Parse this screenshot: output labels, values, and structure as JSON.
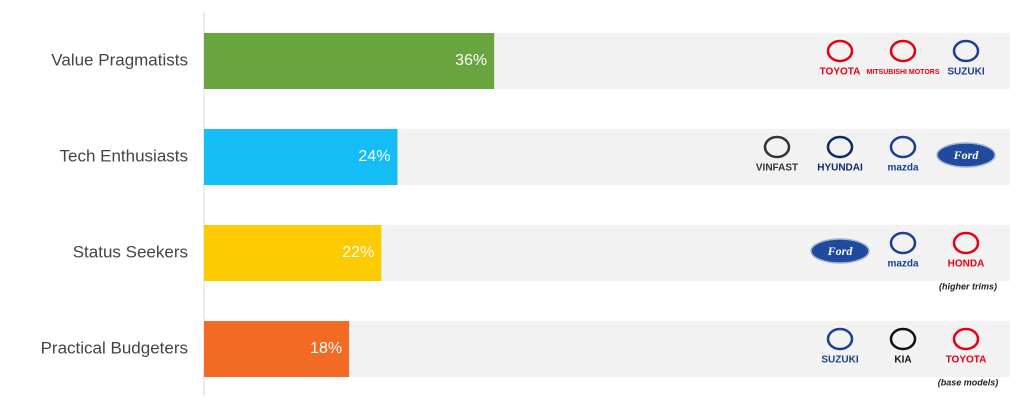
{
  "chart_data": {
    "type": "bar",
    "orientation": "horizontal",
    "categories": [
      "Value Pragmatists",
      "Tech Enthusiasts",
      "Status Seekers",
      "Practical Budgeters"
    ],
    "values": [
      36,
      24,
      22,
      18
    ],
    "value_labels": [
      "36%",
      "24%",
      "22%",
      "18%"
    ],
    "colors": [
      "#6aa43f",
      "#14bdf5",
      "#fdcb02",
      "#f26a24"
    ],
    "xlim": [
      0,
      100
    ],
    "brands": [
      {
        "names": [
          {
            "name": "TOYOTA",
            "color": "#e60012"
          },
          {
            "name": "MITSUBISHI MOTORS",
            "color": "#e60012"
          },
          {
            "name": "SUZUKI",
            "color": "#1b3f94"
          }
        ]
      },
      {
        "names": [
          {
            "name": "VINFAST",
            "color": "#333333"
          },
          {
            "name": "HYUNDAI",
            "color": "#0b2a6b"
          },
          {
            "name": "mazda",
            "color": "#1b3f94"
          },
          {
            "name": "Ford",
            "color": "#1f4a9e"
          }
        ]
      },
      {
        "names": [
          {
            "name": "Ford",
            "color": "#1f4a9e"
          },
          {
            "name": "mazda",
            "color": "#1b3f94"
          },
          {
            "name": "HONDA",
            "color": "#e60012"
          }
        ],
        "note": "(higher trims)"
      },
      {
        "names": [
          {
            "name": "SUZUKI",
            "color": "#1b3f94"
          },
          {
            "name": "KIA",
            "color": "#111111"
          },
          {
            "name": "TOYOTA",
            "color": "#e60012"
          }
        ],
        "note": "(base models)"
      }
    ]
  }
}
